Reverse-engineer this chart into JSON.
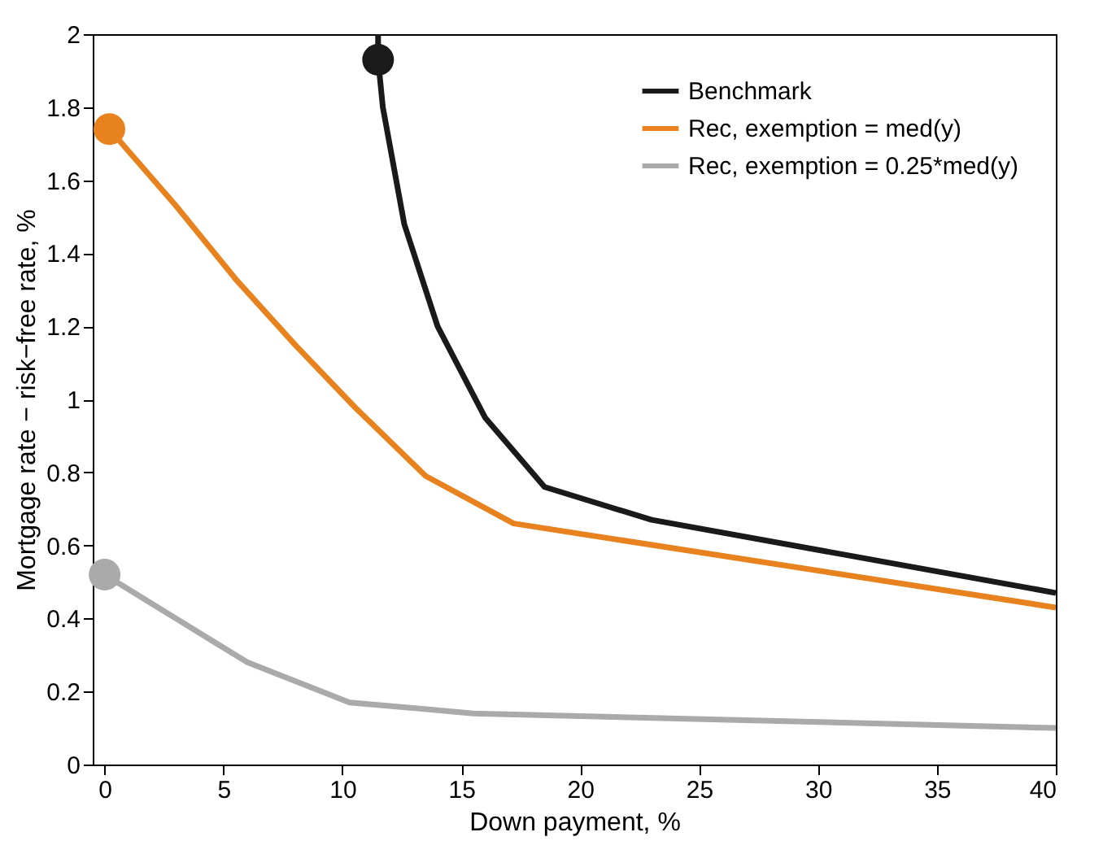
{
  "chart_data": {
    "type": "line",
    "xlabel": "Down payment, %",
    "ylabel": "Mortgage rate − risk−free rate, %",
    "xlim": [
      -0.5,
      40
    ],
    "ylim": [
      0,
      2
    ],
    "xticks": [
      0,
      5,
      10,
      15,
      20,
      25,
      30,
      35,
      40
    ],
    "yticks": [
      0,
      0.2,
      0.4,
      0.6,
      0.8,
      1,
      1.2,
      1.4,
      1.6,
      1.8,
      2
    ],
    "grid": false,
    "legend": "top right",
    "line_style": "solid",
    "series": [
      {
        "name": "Benchmark",
        "color": "#1a1a1a",
        "x": [
          11.5,
          11.5,
          11.7,
          12.6,
          14,
          16,
          18.5,
          23,
          40
        ],
        "values": [
          2.0,
          1.93,
          1.8,
          1.48,
          1.2,
          0.95,
          0.76,
          0.67,
          0.47
        ]
      },
      {
        "name": "Rec, exemption = med(y)",
        "color": "#e8821e",
        "x": [
          0.2,
          3,
          5.5,
          8,
          10.5,
          13.5,
          17.2,
          40
        ],
        "values": [
          1.74,
          1.53,
          1.33,
          1.15,
          0.98,
          0.79,
          0.66,
          0.43
        ]
      },
      {
        "name": "Rec, exemption = 0.25*med(y)",
        "color": "#aaaaaa",
        "x": [
          0,
          2.5,
          6,
          10.3,
          15.5,
          40
        ],
        "values": [
          0.52,
          0.42,
          0.28,
          0.17,
          0.14,
          0.1
        ]
      },
      {
        "type": "scatter",
        "color": "#1a1a1a",
        "x": [
          11.5
        ],
        "values": [
          1.93
        ]
      },
      {
        "type": "scatter",
        "color": "#e8821e",
        "x": [
          0.2
        ],
        "values": [
          1.74
        ]
      },
      {
        "type": "scatter",
        "color": "#aaaaaa",
        "x": [
          0
        ],
        "values": [
          0.52
        ]
      }
    ]
  }
}
